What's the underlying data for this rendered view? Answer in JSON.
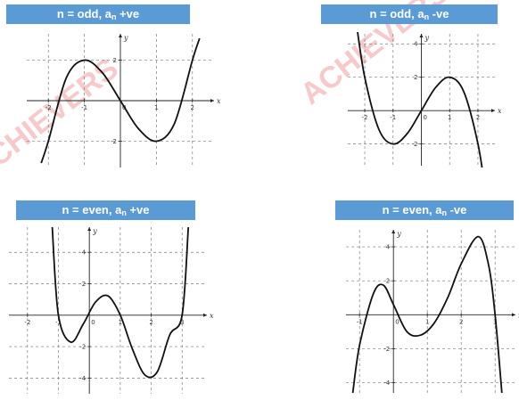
{
  "watermark": {
    "text": "ACHIEVERS",
    "color": "#e63c46"
  },
  "header_color": "#5b9bd5",
  "chart_data": [
    {
      "type": "line",
      "title": {
        "pre": "n = odd, a",
        "sub": "n",
        "post": " +ve"
      },
      "xlabel": "x",
      "ylabel": "y",
      "xlim": [
        -2.6,
        2.6
      ],
      "ylim": [
        -3.3,
        3.3
      ],
      "x_ticks": [
        -2,
        -1,
        1,
        2
      ],
      "x_tick_labels": [
        "-2",
        "-1",
        "1",
        "2"
      ],
      "y_ticks": [
        -2,
        2
      ],
      "y_tick_labels": [
        "-2",
        "2"
      ],
      "origin_label": "0",
      "grid": true,
      "series": [
        {
          "x": [
            -2.2,
            -2,
            -1.5,
            -1,
            -0.5,
            0,
            0.5,
            1,
            1.5,
            2,
            2.2
          ],
          "y": [
            -3.08,
            -2,
            1.13,
            2,
            1.38,
            0,
            -1.38,
            -2,
            -1.13,
            2,
            3.08
          ]
        }
      ]
    },
    {
      "type": "line",
      "title": {
        "pre": "n = odd, a",
        "sub": "n",
        "post": " -ve"
      },
      "xlabel": "x",
      "ylabel": "y",
      "xlim": [
        -2.6,
        2.6
      ],
      "ylim": [
        -3.3,
        4.6
      ],
      "x_ticks": [
        -2,
        -1,
        1,
        2
      ],
      "x_tick_labels": [
        "-2",
        "-1",
        "1",
        "2"
      ],
      "y_ticks": [
        -2,
        2,
        4
      ],
      "y_tick_labels": [
        "-2",
        "2",
        "4"
      ],
      "origin_label": "0",
      "grid": true,
      "series": [
        {
          "x": [
            -2.3,
            -2,
            -1.5,
            -1,
            -0.5,
            0,
            0.5,
            1,
            1.5,
            2,
            2.3
          ],
          "y": [
            5.27,
            2,
            -1.13,
            -2,
            -1.38,
            0,
            1.38,
            2,
            1.13,
            -2,
            -5.27
          ]
        }
      ]
    },
    {
      "type": "line",
      "title": {
        "pre": "n = even, a",
        "sub": "n",
        "post": " +ve"
      },
      "xlabel": "x",
      "ylabel": "y",
      "xlim": [
        -2.6,
        3.8
      ],
      "ylim": [
        -5.0,
        5.6
      ],
      "x_ticks": [
        -2,
        -1,
        1,
        2,
        3
      ],
      "x_tick_labels": [
        "-2",
        "-1",
        "1",
        "2",
        "3"
      ],
      "y_ticks": [
        -4,
        -2,
        2,
        4
      ],
      "y_tick_labels": [
        "-4",
        "-2",
        "2",
        "4"
      ],
      "origin_label": "0",
      "grid": true,
      "series": [
        {
          "x": [
            -1.2,
            -1,
            -0.6,
            -0.2,
            0.2,
            0.6,
            1,
            1.4,
            1.8,
            2.2,
            2.6,
            3,
            3.2
          ],
          "y": [
            5.6,
            0,
            -1.71,
            -0.58,
            0.83,
            1.23,
            0,
            -2.2,
            -3.81,
            -3.59,
            -1.25,
            0,
            5.6
          ]
        }
      ]
    },
    {
      "type": "line",
      "title": {
        "pre": "n = even, a",
        "sub": "n",
        "post": " -ve"
      },
      "xlabel": "x",
      "ylabel": "y",
      "xlim": [
        -1.4,
        3.6
      ],
      "ylim": [
        -4.6,
        5.0
      ],
      "x_ticks": [
        -1,
        1,
        2,
        3
      ],
      "x_tick_labels": [
        "-1",
        "1",
        "2",
        "3"
      ],
      "y_ticks": [
        -4,
        -2,
        2,
        4
      ],
      "y_tick_labels": [
        "-4",
        "-2",
        "2",
        "4"
      ],
      "origin_label": "0",
      "grid": true,
      "series": [
        {
          "x": [
            -1.2,
            -1,
            -0.6,
            -0.3,
            0,
            0.4,
            0.8,
            1.2,
            1.6,
            2,
            2.5,
            2.8,
            3,
            3.2
          ],
          "y": [
            -4.6,
            -1.8,
            1.2,
            1.75,
            0.6,
            -1.0,
            -1.2,
            -0.5,
            1.0,
            3.0,
            4.6,
            3.0,
            0,
            -4.6
          ]
        }
      ]
    }
  ]
}
